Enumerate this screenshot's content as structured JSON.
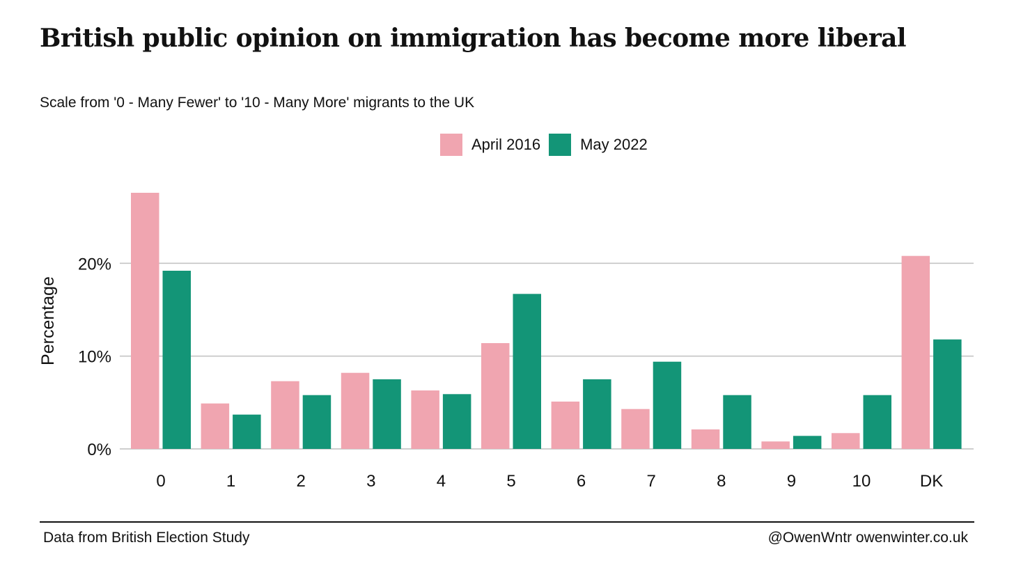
{
  "header": {
    "title": "British public opinion on immigration has become more liberal",
    "subtitle": "Scale from '0 - Many Fewer' to '10 - Many More' migrants to the UK"
  },
  "footer": {
    "source": "Data from British Election Study",
    "credit": "@OwenWntr owenwinter.co.uk"
  },
  "chart_data": {
    "type": "bar",
    "title": "British public opinion on immigration has become more liberal",
    "subtitle": "Scale from '0 - Many Fewer' to '10 - Many More' migrants to the UK",
    "xlabel": "",
    "ylabel": "Percentage",
    "categories": [
      "0",
      "1",
      "2",
      "3",
      "4",
      "5",
      "6",
      "7",
      "8",
      "9",
      "10",
      "DK"
    ],
    "series": [
      {
        "name": "April 2016",
        "color": "#f0a5b0",
        "values": [
          27.6,
          4.9,
          7.3,
          8.2,
          6.3,
          11.4,
          5.1,
          4.3,
          2.1,
          0.8,
          1.7,
          20.8
        ]
      },
      {
        "name": "May 2022",
        "color": "#139577",
        "values": [
          19.2,
          3.7,
          5.8,
          7.5,
          5.9,
          16.7,
          7.5,
          9.4,
          5.8,
          1.4,
          5.8,
          11.8
        ]
      }
    ],
    "ylim": [
      0,
      27.6
    ],
    "yticks": [
      0,
      10,
      20
    ],
    "ytick_labels": [
      "0%",
      "10%",
      "20%"
    ],
    "grid": true,
    "legend_position": "top-center"
  }
}
